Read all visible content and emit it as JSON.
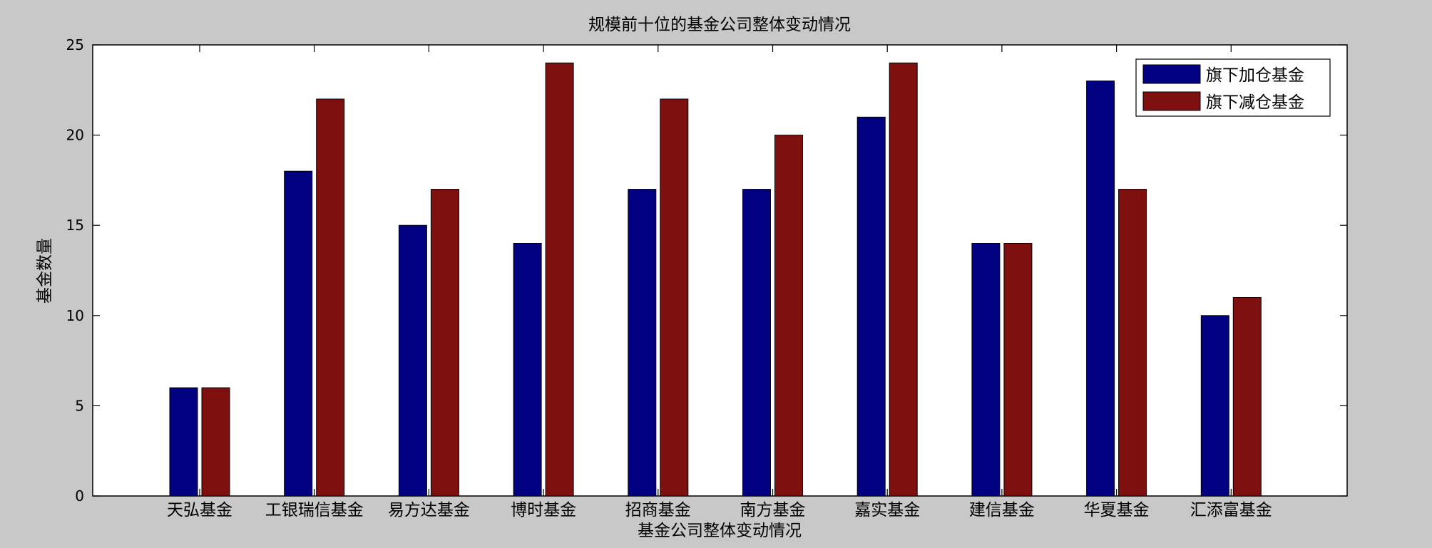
{
  "chart_data": {
    "type": "bar",
    "title": "规模前十位的基金公司整体变动情况",
    "xlabel": "基金公司整体变动情况",
    "ylabel": "基金数量",
    "ylim": [
      0,
      25
    ],
    "yticks": [
      0,
      5,
      10,
      15,
      20,
      25
    ],
    "categories": [
      "天弘基金",
      "工银瑞信基金",
      "易方达基金",
      "博时基金",
      "招商基金",
      "南方基金",
      "嘉实基金",
      "建信基金",
      "华夏基金",
      "汇添富基金"
    ],
    "series": [
      {
        "name": "旗下加仓基金",
        "color": "#000080",
        "values": [
          6,
          18,
          15,
          14,
          17,
          17,
          21,
          14,
          23,
          10
        ]
      },
      {
        "name": "旗下减仓基金",
        "color": "#7f1010",
        "values": [
          6,
          22,
          17,
          24,
          22,
          20,
          24,
          14,
          17,
          11
        ]
      }
    ],
    "legend_position": "top-right",
    "grid": false
  }
}
